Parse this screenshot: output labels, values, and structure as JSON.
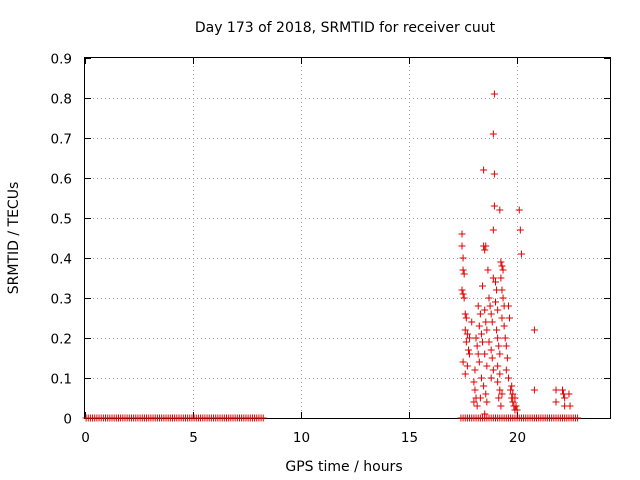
{
  "chart_data": {
    "type": "scatter",
    "title": "Day 173 of 2018, SRMTID for receiver cuut",
    "xlabel": "GPS time / hours",
    "ylabel": "SRMTID / TECUs",
    "xlim": [
      0,
      24.3
    ],
    "ylim": [
      0,
      0.9
    ],
    "xticks": [
      0,
      5,
      10,
      15,
      20
    ],
    "yticks": [
      0,
      0.1,
      0.2,
      0.3,
      0.4,
      0.5,
      0.6,
      0.7,
      0.8,
      0.9
    ],
    "ytick_labels": [
      "0",
      "0.1",
      "0.2",
      "0.3",
      "0.4",
      "0.5",
      "0.6",
      "0.7",
      "0.8",
      "0.9"
    ],
    "grid": true,
    "marker": "+",
    "color": "#e00000",
    "zero_baseline_ranges": [
      [
        0.05,
        8.3,
        0.1
      ],
      [
        17.4,
        22.8,
        0.1
      ]
    ],
    "points": [
      [
        17.45,
        0.46
      ],
      [
        17.45,
        0.43
      ],
      [
        17.5,
        0.4
      ],
      [
        17.5,
        0.37
      ],
      [
        17.55,
        0.36
      ],
      [
        17.45,
        0.32
      ],
      [
        17.5,
        0.31
      ],
      [
        17.55,
        0.3
      ],
      [
        17.6,
        0.26
      ],
      [
        17.65,
        0.25
      ],
      [
        17.6,
        0.22
      ],
      [
        17.7,
        0.21
      ],
      [
        17.65,
        0.19
      ],
      [
        17.75,
        0.17
      ],
      [
        17.8,
        0.16
      ],
      [
        17.5,
        0.14
      ],
      [
        17.6,
        0.11
      ],
      [
        17.7,
        0.13
      ],
      [
        17.8,
        0.2
      ],
      [
        17.9,
        0.24
      ],
      [
        18.0,
        0.09
      ],
      [
        18.05,
        0.07
      ],
      [
        18.1,
        0.05
      ],
      [
        18.0,
        0.04
      ],
      [
        18.15,
        0.03
      ],
      [
        18.1,
        0.2
      ],
      [
        18.15,
        0.18
      ],
      [
        18.2,
        0.16
      ],
      [
        18.25,
        0.14
      ],
      [
        18.05,
        0.12
      ],
      [
        18.2,
        0.28
      ],
      [
        18.3,
        0.26
      ],
      [
        18.25,
        0.23
      ],
      [
        18.35,
        0.21
      ],
      [
        18.4,
        0.19
      ],
      [
        18.45,
        0.43
      ],
      [
        18.5,
        0.42
      ],
      [
        18.55,
        0.43
      ],
      [
        18.4,
        0.33
      ],
      [
        18.45,
        0.62
      ],
      [
        18.5,
        0.27
      ],
      [
        18.55,
        0.24
      ],
      [
        18.6,
        0.22
      ],
      [
        18.5,
        0.16
      ],
      [
        18.6,
        0.13
      ],
      [
        18.35,
        0.1
      ],
      [
        18.45,
        0.08
      ],
      [
        18.55,
        0.06
      ],
      [
        18.6,
        0.04
      ],
      [
        18.5,
        0.01
      ],
      [
        18.7,
        0.3
      ],
      [
        18.75,
        0.28
      ],
      [
        18.8,
        0.26
      ],
      [
        18.85,
        0.24
      ],
      [
        18.9,
        0.35
      ],
      [
        18.95,
        0.81
      ],
      [
        18.9,
        0.71
      ],
      [
        18.95,
        0.61
      ],
      [
        18.95,
        0.53
      ],
      [
        18.9,
        0.47
      ],
      [
        18.7,
        0.19
      ],
      [
        18.8,
        0.17
      ],
      [
        18.85,
        0.15
      ],
      [
        18.9,
        0.12
      ],
      [
        18.8,
        0.1
      ],
      [
        19.0,
        0.34
      ],
      [
        19.05,
        0.32
      ],
      [
        19.0,
        0.29
      ],
      [
        19.1,
        0.27
      ],
      [
        19.05,
        0.22
      ],
      [
        19.1,
        0.2
      ],
      [
        19.15,
        0.18
      ],
      [
        19.2,
        0.16
      ],
      [
        19.1,
        0.13
      ],
      [
        19.2,
        0.11
      ],
      [
        19.2,
        0.52
      ],
      [
        19.25,
        0.39
      ],
      [
        19.3,
        0.38
      ],
      [
        19.35,
        0.37
      ],
      [
        19.25,
        0.35
      ],
      [
        19.3,
        0.32
      ],
      [
        19.35,
        0.3
      ],
      [
        19.4,
        0.28
      ],
      [
        19.3,
        0.25
      ],
      [
        19.4,
        0.23
      ],
      [
        19.1,
        0.09
      ],
      [
        19.2,
        0.07
      ],
      [
        19.3,
        0.06
      ],
      [
        19.15,
        0.05
      ],
      [
        19.25,
        0.03
      ],
      [
        19.45,
        0.2
      ],
      [
        19.5,
        0.18
      ],
      [
        19.55,
        0.15
      ],
      [
        19.5,
        0.12
      ],
      [
        19.6,
        0.1
      ],
      [
        19.7,
        0.07
      ],
      [
        19.75,
        0.05
      ],
      [
        19.8,
        0.04
      ],
      [
        19.85,
        0.03
      ],
      [
        19.9,
        0.02
      ],
      [
        19.75,
        0.08
      ],
      [
        19.8,
        0.06
      ],
      [
        19.9,
        0.05
      ],
      [
        19.95,
        0.03
      ],
      [
        20.0,
        0.02
      ],
      [
        20.1,
        0.52
      ],
      [
        20.15,
        0.47
      ],
      [
        20.2,
        0.41
      ],
      [
        19.6,
        0.28
      ],
      [
        19.65,
        0.25
      ],
      [
        20.8,
        0.22
      ],
      [
        20.8,
        0.07
      ],
      [
        21.8,
        0.07
      ],
      [
        21.8,
        0.04
      ],
      [
        22.1,
        0.07
      ],
      [
        22.15,
        0.06
      ],
      [
        22.2,
        0.05
      ],
      [
        22.2,
        0.03
      ],
      [
        22.4,
        0.06
      ],
      [
        22.45,
        0.03
      ],
      [
        18.65,
        0.37
      ],
      [
        18.3,
        0.05
      ]
    ]
  }
}
